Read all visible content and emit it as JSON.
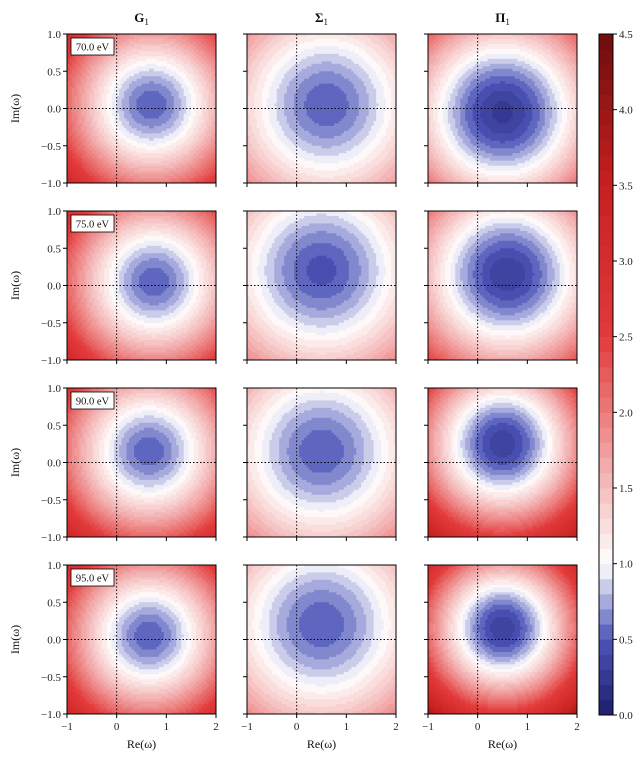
{
  "chart_data": {
    "type": "heatmap",
    "panel_layout": {
      "rows": 4,
      "columns": 3
    },
    "column_titles": [
      {
        "main": "G",
        "sub": "1"
      },
      {
        "main": "Σ",
        "sub": "1"
      },
      {
        "main": "Π",
        "sub": "1"
      }
    ],
    "row_labels": [
      "70.0 eV",
      "75.0 eV",
      "90.0 eV",
      "95.0 eV"
    ],
    "xlabel": "Re(ω)",
    "ylabel": "Im(ω)",
    "xlim": [
      -1,
      2
    ],
    "ylim": [
      -1,
      1
    ],
    "xticks": [
      "−1",
      "0",
      "1",
      "2"
    ],
    "yticks": [
      "−1.0",
      "−0.5",
      "0.0",
      "0.5",
      "1.0"
    ],
    "colorbar": {
      "min": 0.0,
      "max": 4.5,
      "ticks": [
        "0.0",
        "0.5",
        "1.0",
        "1.5",
        "2.0",
        "2.5",
        "3.0",
        "3.5",
        "4.0",
        "4.5"
      ],
      "colormap": "seismic",
      "low_color": "#1d1d6b",
      "mid_color": "#ffffff",
      "high_color": "#6e0d0d",
      "mid_value": 1.0
    },
    "reference_lines": {
      "x": 0,
      "y": 0,
      "style": "dotted"
    },
    "grid": false,
    "panels": [
      {
        "row": 0,
        "col": 0,
        "function": "G1",
        "energy": "70.0 eV",
        "minimum_location": [
          0.7,
          0.05
        ],
        "minimum_value": 0.5,
        "outer_value": 3.2
      },
      {
        "row": 0,
        "col": 1,
        "function": "Σ1",
        "energy": "70.0 eV",
        "minimum_location": [
          0.6,
          0.05
        ],
        "minimum_value": 0.5,
        "outer_value": 1.9
      },
      {
        "row": 0,
        "col": 2,
        "function": "Π1",
        "energy": "70.0 eV",
        "minimum_location": [
          0.5,
          -0.05
        ],
        "minimum_value": 0.25,
        "outer_value": 2.2
      },
      {
        "row": 1,
        "col": 0,
        "function": "G1",
        "energy": "75.0 eV",
        "minimum_location": [
          0.75,
          0.05
        ],
        "minimum_value": 0.5,
        "outer_value": 3.2
      },
      {
        "row": 1,
        "col": 1,
        "function": "Σ1",
        "energy": "75.0 eV",
        "minimum_location": [
          0.5,
          0.2
        ],
        "minimum_value": 0.45,
        "outer_value": 1.9
      },
      {
        "row": 1,
        "col": 2,
        "function": "Π1",
        "energy": "75.0 eV",
        "minimum_location": [
          0.6,
          0.15
        ],
        "minimum_value": 0.3,
        "outer_value": 2.5
      },
      {
        "row": 2,
        "col": 0,
        "function": "G1",
        "energy": "90.0 eV",
        "minimum_location": [
          0.65,
          0.15
        ],
        "minimum_value": 0.5,
        "outer_value": 3.3
      },
      {
        "row": 2,
        "col": 1,
        "function": "Σ1",
        "energy": "90.0 eV",
        "minimum_location": [
          0.5,
          0.15
        ],
        "minimum_value": 0.5,
        "outer_value": 1.9
      },
      {
        "row": 2,
        "col": 2,
        "function": "Π1",
        "energy": "90.0 eV",
        "minimum_location": [
          0.5,
          0.25
        ],
        "minimum_value": 0.3,
        "outer_value": 3.6
      },
      {
        "row": 3,
        "col": 0,
        "function": "G1",
        "energy": "95.0 eV",
        "minimum_location": [
          0.65,
          0.05
        ],
        "minimum_value": 0.5,
        "outer_value": 3.3
      },
      {
        "row": 3,
        "col": 1,
        "function": "Σ1",
        "energy": "95.0 eV",
        "minimum_location": [
          0.5,
          0.2
        ],
        "minimum_value": 0.5,
        "outer_value": 1.9
      },
      {
        "row": 3,
        "col": 2,
        "function": "Π1",
        "energy": "95.0 eV",
        "minimum_location": [
          0.5,
          0.15
        ],
        "minimum_value": 0.3,
        "outer_value": 3.9
      }
    ]
  }
}
